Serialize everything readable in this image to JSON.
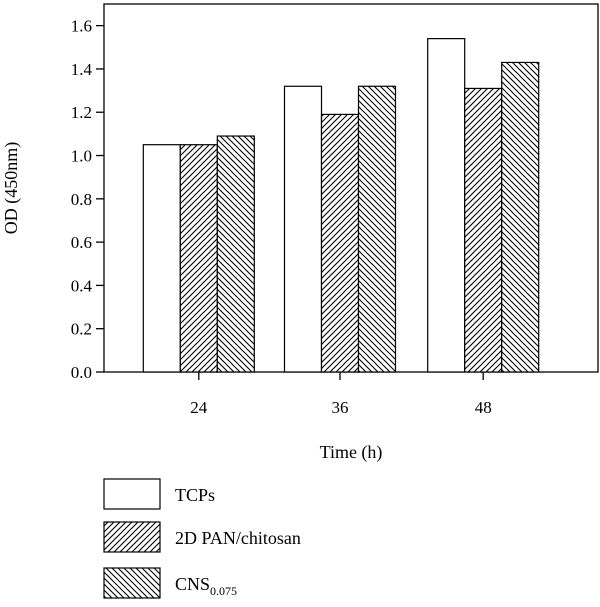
{
  "chart_data": {
    "type": "bar",
    "title": "",
    "xlabel": "Time (h)",
    "ylabel": "OD (450nm)",
    "categories": [
      "24",
      "36",
      "48"
    ],
    "ylim": [
      0,
      1.7
    ],
    "yticks": [
      "0.0",
      "0.2",
      "0.4",
      "0.6",
      "0.8",
      "1.0",
      "1.2",
      "1.4",
      "1.6"
    ],
    "series": [
      {
        "name": "TCPs",
        "values": [
          1.05,
          1.32,
          1.54
        ],
        "pattern": "none"
      },
      {
        "name": "2D PAN/chitosan",
        "values": [
          1.05,
          1.19,
          1.31
        ],
        "pattern": "hatch-forward"
      },
      {
        "name": "CNS",
        "name_subscript": "0.075",
        "values": [
          1.09,
          1.32,
          1.43
        ],
        "pattern": "hatch-backward"
      }
    ],
    "grid": false,
    "legend_position": "bottom-left",
    "colors": {
      "bar_fill": "#ffffff",
      "stroke": "#000000",
      "hatch": "#000000"
    }
  }
}
